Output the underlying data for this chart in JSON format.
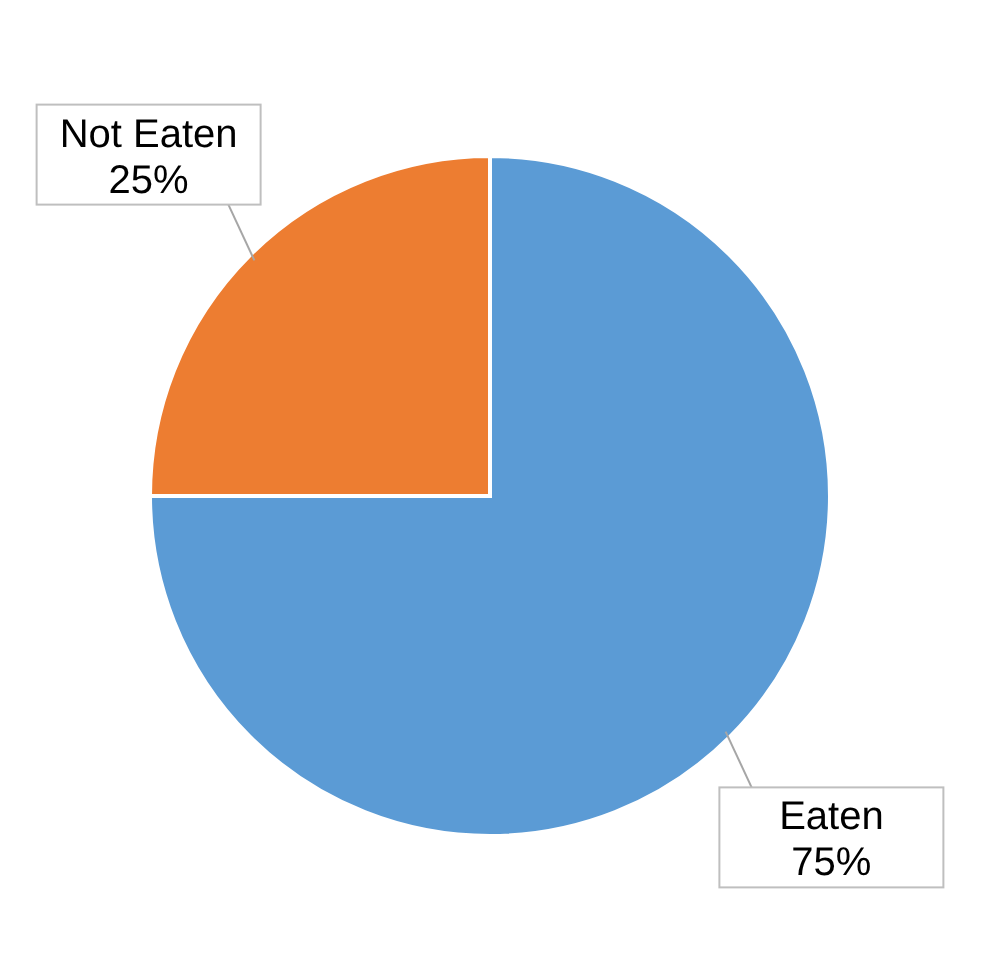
{
  "chart_data": {
    "type": "pie",
    "categories": [
      "Eaten",
      "Not Eaten"
    ],
    "values": [
      75,
      25
    ],
    "colors": [
      "#5b9bd5",
      "#ed7d31"
    ],
    "value_labels": [
      "75%",
      "25%"
    ]
  }
}
